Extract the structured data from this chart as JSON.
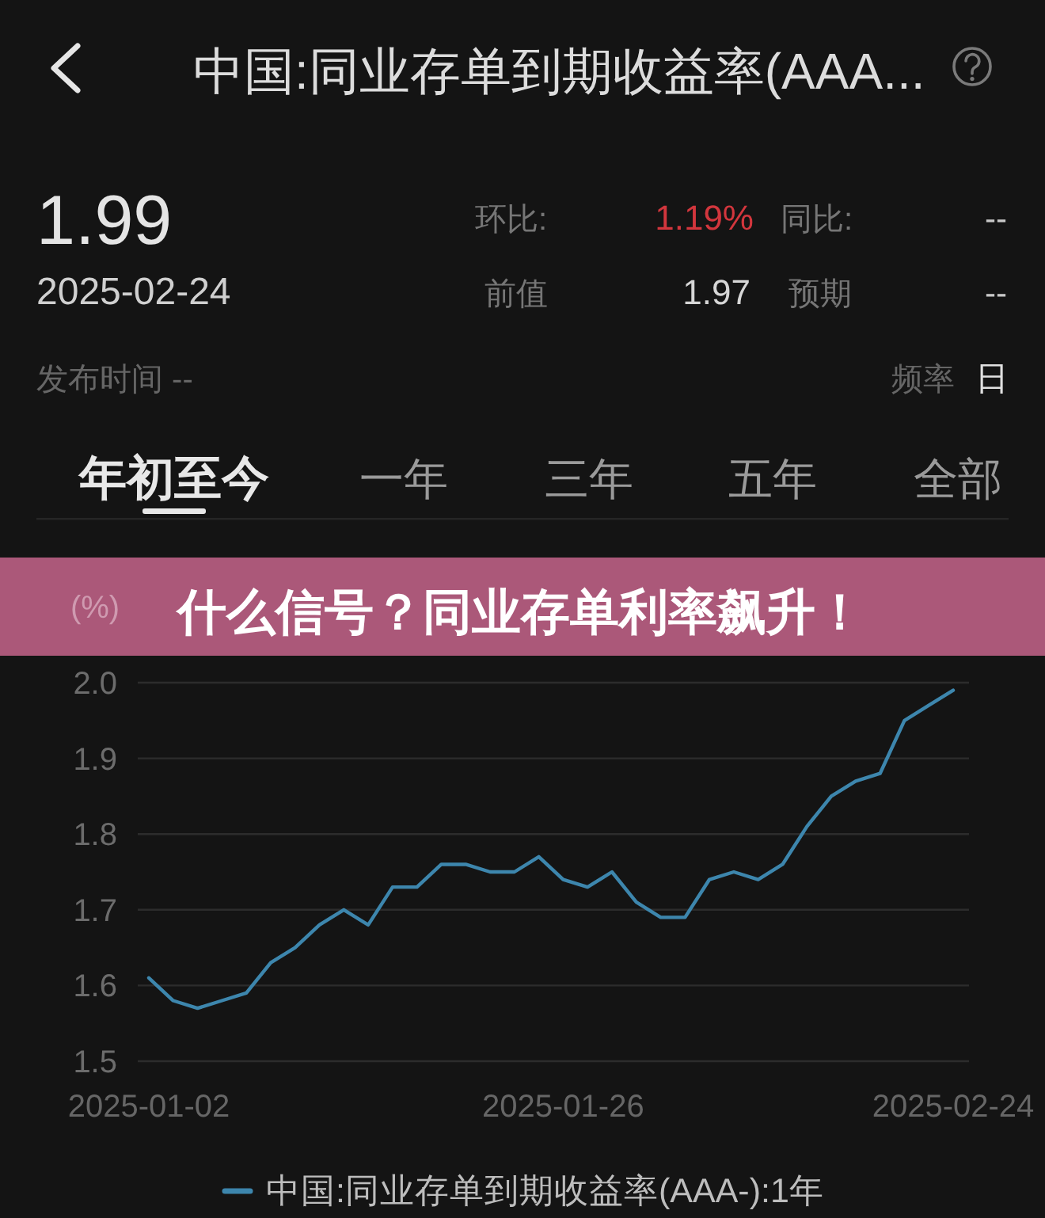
{
  "chart_data": {
    "type": "line",
    "title": "中国:同业存单到期收益率(AAA...",
    "ylabel": "(%)",
    "annotations": [
      "1.99",
      "2025-02-24",
      "环比:",
      "1.19%",
      "同比:",
      "--",
      "前值",
      "1.97",
      "预期",
      "--",
      "发布时间 --",
      "频率",
      "日",
      "年初至今",
      "一年",
      "三年",
      "五年",
      "全部",
      "什么信号？同业存单利率飙升！"
    ],
    "categories": [
      "2025-01-02",
      null,
      null,
      null,
      null,
      null,
      null,
      null,
      null,
      null,
      null,
      null,
      null,
      null,
      null,
      null,
      null,
      "2025-01-26",
      null,
      null,
      null,
      null,
      null,
      null,
      null,
      null,
      null,
      null,
      null,
      null,
      null,
      null,
      null,
      "2025-02-24"
    ],
    "series": [
      {
        "name": "中国:同业存单到期收益率(AAA-):1年",
        "color": "#3d86ad",
        "values": [
          1.61,
          1.58,
          1.57,
          1.58,
          1.59,
          1.63,
          1.65,
          1.68,
          1.7,
          1.68,
          1.73,
          1.73,
          1.76,
          1.76,
          1.75,
          1.75,
          1.77,
          1.74,
          1.73,
          1.75,
          1.71,
          1.69,
          1.69,
          1.74,
          1.75,
          1.74,
          1.76,
          1.81,
          1.85,
          1.87,
          1.88,
          1.95,
          1.97,
          1.99
        ]
      }
    ],
    "ylim": [
      1.5,
      2.0
    ],
    "yticks": [
      1.5,
      1.6,
      1.7,
      1.8,
      1.9,
      {
        "value": 2,
        "label": "2.0"
      }
    ],
    "grid": "y",
    "legend": "bottom"
  }
}
